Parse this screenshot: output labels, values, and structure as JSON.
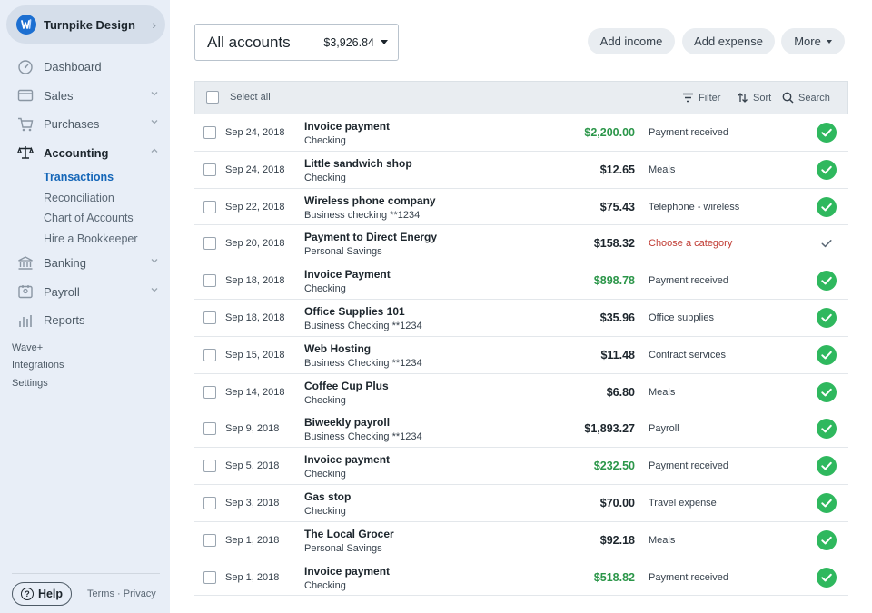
{
  "business": {
    "name": "Turnpike Design"
  },
  "nav": [
    {
      "label": "Dashboard",
      "icon": "dashboard-icon"
    },
    {
      "label": "Sales",
      "icon": "sales-icon"
    },
    {
      "label": "Purchases",
      "icon": "cart-icon"
    },
    {
      "label": "Accounting",
      "icon": "scale-icon"
    },
    {
      "label": "Banking",
      "icon": "bank-icon"
    },
    {
      "label": "Payroll",
      "icon": "payroll-icon"
    },
    {
      "label": "Reports",
      "icon": "reports-icon"
    }
  ],
  "accounting_sub": [
    "Transactions",
    "Reconciliation",
    "Chart of Accounts",
    "Hire a Bookkeeper"
  ],
  "extras": [
    "Wave+",
    "Integrations",
    "Settings"
  ],
  "footer": {
    "help": "Help",
    "terms": "Terms",
    "separator": "·",
    "privacy": "Privacy"
  },
  "account_selector": {
    "label": "All accounts",
    "balance": "$3,926.84"
  },
  "actions": {
    "add_income": "Add income",
    "add_expense": "Add expense",
    "more": "More"
  },
  "table_header": {
    "select_all": "Select all",
    "filter": "Filter",
    "sort": "Sort",
    "search": "Search"
  },
  "transactions": [
    {
      "date": "Sep 24, 2018",
      "description": "Invoice payment",
      "account": "Checking",
      "amount": "$2,200.00",
      "type": "income",
      "category": "Payment received",
      "reviewed": true
    },
    {
      "date": "Sep 24, 2018",
      "description": "Little sandwich shop",
      "account": "Checking",
      "amount": "$12.65",
      "type": "expense",
      "category": "Meals",
      "reviewed": true
    },
    {
      "date": "Sep 22, 2018",
      "description": "Wireless phone company",
      "account": "Business checking **1234",
      "amount": "$75.43",
      "type": "expense",
      "category": "Telephone - wireless",
      "reviewed": true
    },
    {
      "date": "Sep 20, 2018",
      "description": "Payment to Direct Energy",
      "account": "Personal Savings",
      "amount": "$158.32",
      "type": "expense",
      "category": "Choose a category",
      "reviewed": false
    },
    {
      "date": "Sep 18, 2018",
      "description": "Invoice Payment",
      "account": "Checking",
      "amount": "$898.78",
      "type": "income",
      "category": "Payment received",
      "reviewed": true
    },
    {
      "date": "Sep 18, 2018",
      "description": "Office Supplies 101",
      "account": "Business Checking **1234",
      "amount": "$35.96",
      "type": "expense",
      "category": "Office supplies",
      "reviewed": true
    },
    {
      "date": "Sep 15, 2018",
      "description": "Web Hosting",
      "account": "Business Checking **1234",
      "amount": "$11.48",
      "type": "expense",
      "category": "Contract services",
      "reviewed": true
    },
    {
      "date": "Sep 14, 2018",
      "description": "Coffee Cup Plus",
      "account": "Checking",
      "amount": "$6.80",
      "type": "expense",
      "category": "Meals",
      "reviewed": true
    },
    {
      "date": "Sep 9, 2018",
      "description": "Biweekly payroll",
      "account": "Business Checking **1234",
      "amount": "$1,893.27",
      "type": "expense",
      "category": "Payroll",
      "reviewed": true
    },
    {
      "date": "Sep 5, 2018",
      "description": "Invoice payment",
      "account": "Checking",
      "amount": "$232.50",
      "type": "income",
      "category": "Payment received",
      "reviewed": true
    },
    {
      "date": "Sep 3, 2018",
      "description": "Gas stop",
      "account": "Checking",
      "amount": "$70.00",
      "type": "expense",
      "category": "Travel expense",
      "reviewed": true
    },
    {
      "date": "Sep 1, 2018",
      "description": "The Local Grocer",
      "account": "Personal Savings",
      "amount": "$92.18",
      "type": "expense",
      "category": "Meals",
      "reviewed": true
    },
    {
      "date": "Sep 1, 2018",
      "description": "Invoice payment",
      "account": "Checking",
      "amount": "$518.82",
      "type": "income",
      "category": "Payment received",
      "reviewed": true
    }
  ],
  "colors": {
    "income": "#2b9649",
    "reviewed": "#2fb85e",
    "uncategorized": "#c03a32",
    "active_link": "#1466b8",
    "sidebar_bg": "#e8eef7"
  }
}
